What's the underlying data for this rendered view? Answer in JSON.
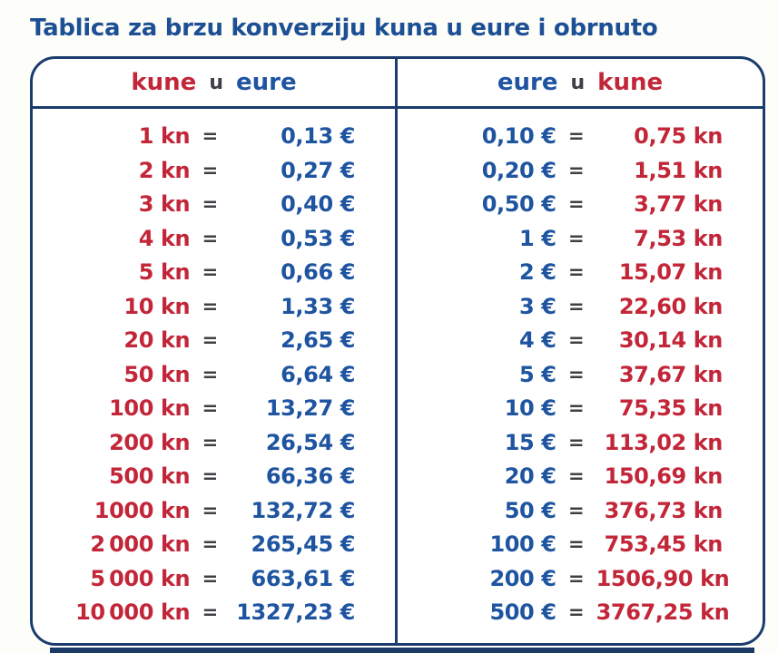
{
  "page": {
    "title": "Tablica za brzu konverziju kuna u eure i obrnuto"
  },
  "table": {
    "eq_sign": "=",
    "left_header": {
      "from": "kune",
      "conj": "u",
      "to": "eure"
    },
    "right_header": {
      "from": "eure",
      "conj": "u",
      "to": "kune"
    },
    "left_rows": [
      {
        "kn": "1 kn",
        "eur": "0,13 €"
      },
      {
        "kn": "2 kn",
        "eur": "0,27 €"
      },
      {
        "kn": "3 kn",
        "eur": "0,40 €"
      },
      {
        "kn": "4 kn",
        "eur": "0,53 €"
      },
      {
        "kn": "5 kn",
        "eur": "0,66 €"
      },
      {
        "kn": "10 kn",
        "eur": "1,33 €"
      },
      {
        "kn": "20 kn",
        "eur": "2,65 €"
      },
      {
        "kn": "50 kn",
        "eur": "6,64 €"
      },
      {
        "kn": "100 kn",
        "eur": "13,27 €"
      },
      {
        "kn": "200 kn",
        "eur": "26,54 €"
      },
      {
        "kn": "500 kn",
        "eur": "66,36 €"
      },
      {
        "kn": "1000 kn",
        "eur": "132,72 €"
      },
      {
        "kn": "2 000 kn",
        "eur": "265,45 €"
      },
      {
        "kn": "5 000 kn",
        "eur": "663,61 €"
      },
      {
        "kn": "10 000 kn",
        "eur": "1327,23 €"
      }
    ],
    "right_rows": [
      {
        "eur": "0,10 €",
        "kn": "0,75 kn"
      },
      {
        "eur": "0,20 €",
        "kn": "1,51 kn"
      },
      {
        "eur": "0,50 €",
        "kn": "3,77 kn"
      },
      {
        "eur": "1 €",
        "kn": "7,53 kn"
      },
      {
        "eur": "2 €",
        "kn": "15,07 kn"
      },
      {
        "eur": "3 €",
        "kn": "22,60 kn"
      },
      {
        "eur": "4 €",
        "kn": "30,14 kn"
      },
      {
        "eur": "5 €",
        "kn": "37,67 kn"
      },
      {
        "eur": "10 €",
        "kn": "75,35 kn"
      },
      {
        "eur": "15 €",
        "kn": "113,02 kn"
      },
      {
        "eur": "20 €",
        "kn": "150,69 kn"
      },
      {
        "eur": "50 €",
        "kn": "376,73 kn"
      },
      {
        "eur": "100 €",
        "kn": "753,45 kn"
      },
      {
        "eur": "200 €",
        "kn": "1506,90 kn"
      },
      {
        "eur": "500 €",
        "kn": "3767,25 kn"
      }
    ]
  },
  "colors": {
    "red": "#c22638",
    "blue": "#1e54a0",
    "title": "#1d4f94",
    "dark": "#3f3f45",
    "border": "#1a3c6e",
    "bar": "#1b3a66"
  }
}
